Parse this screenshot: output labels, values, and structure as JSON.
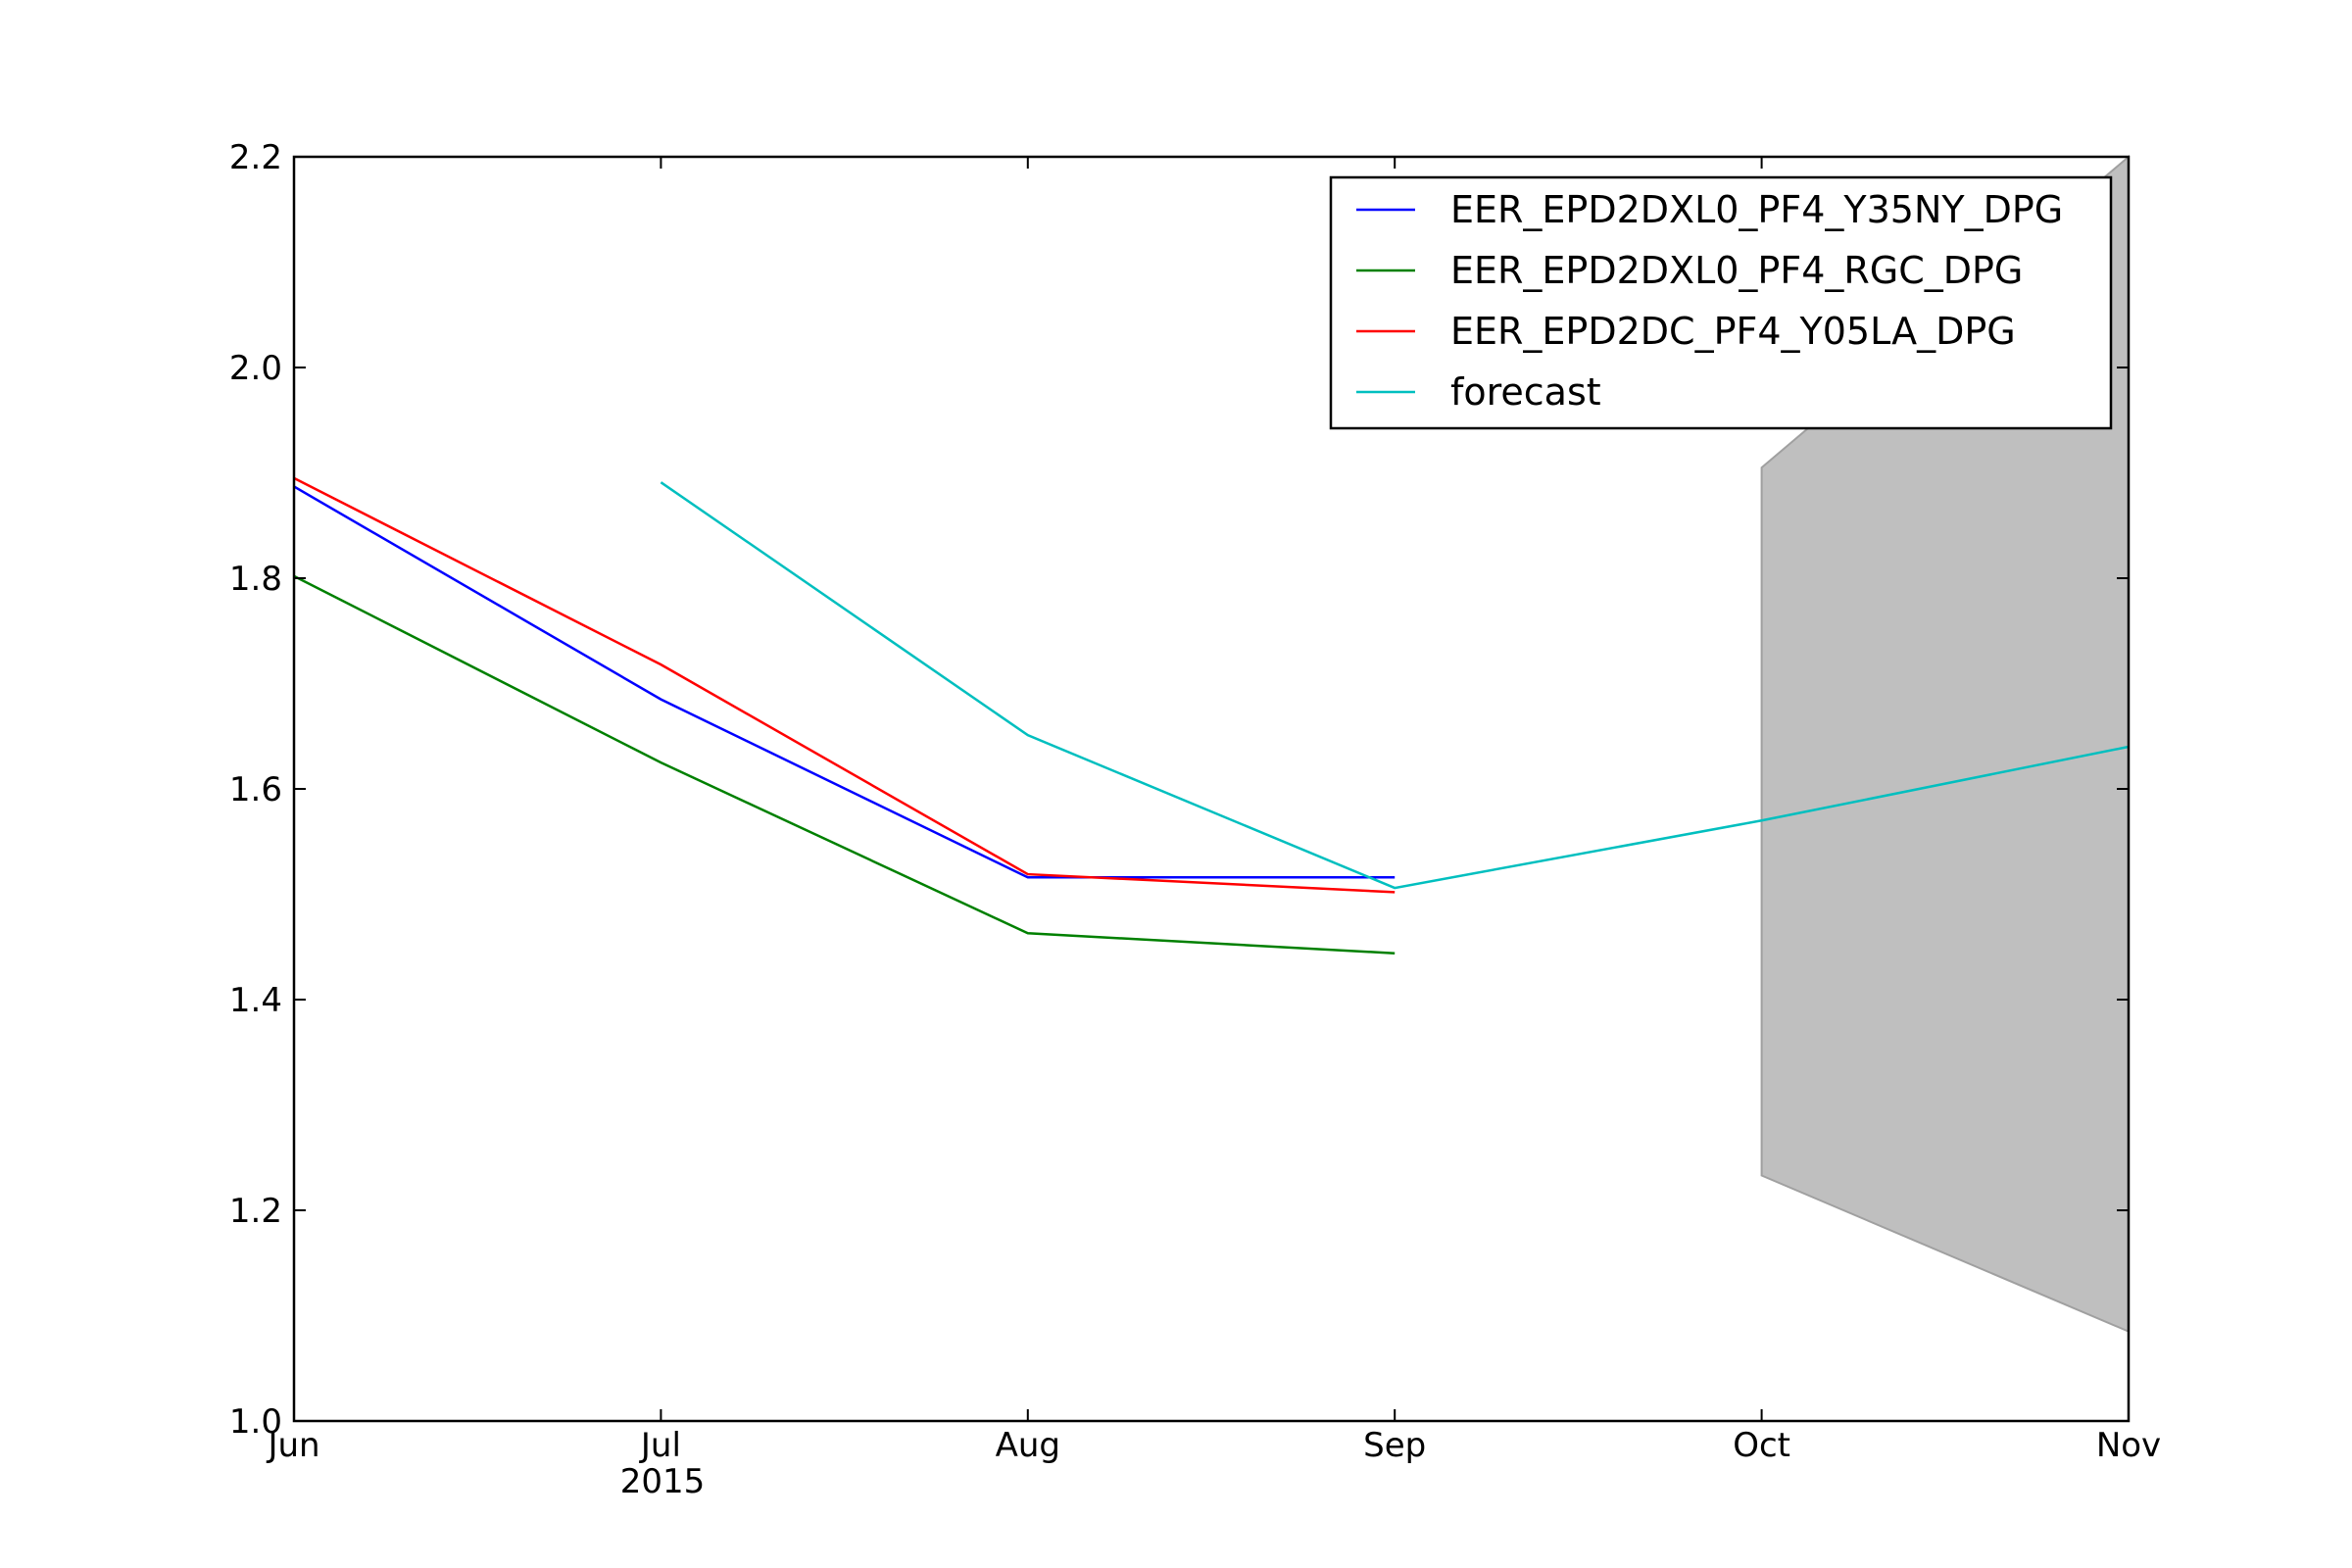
{
  "chart_data": {
    "type": "line",
    "x": [
      "2015-06",
      "2015-07",
      "2015-08",
      "2015-09",
      "2015-10",
      "2015-11"
    ],
    "x_tick_labels": [
      "Jun",
      "Jul",
      "Aug",
      "Sep",
      "Oct",
      "Nov"
    ],
    "x_secondary_label": "2015",
    "ylim": [
      1.0,
      2.2
    ],
    "y_ticks": [
      1.0,
      1.2,
      1.4,
      1.6,
      1.8,
      2.0,
      2.2
    ],
    "y_tick_labels": [
      "1.0",
      "1.2",
      "1.4",
      "1.6",
      "1.8",
      "2.0",
      "2.2"
    ],
    "grid": false,
    "legend_position": "top-right",
    "series": [
      {
        "name": "EER_EPD2DXL0_PF4_Y35NY_DPG",
        "color": "#0000ff",
        "x": [
          "2015-06",
          "2015-07",
          "2015-08",
          "2015-09"
        ],
        "values": [
          1.887,
          1.685,
          1.516,
          1.516
        ]
      },
      {
        "name": "EER_EPD2DXL0_PF4_RGC_DPG",
        "color": "#008000",
        "x": [
          "2015-06",
          "2015-07",
          "2015-08",
          "2015-09"
        ],
        "values": [
          1.802,
          1.625,
          1.463,
          1.444
        ]
      },
      {
        "name": "EER_EPD2DC_PF4_Y05LA_DPG",
        "color": "#ff0000",
        "x": [
          "2015-06",
          "2015-07",
          "2015-08",
          "2015-09"
        ],
        "values": [
          1.895,
          1.718,
          1.519,
          1.502
        ]
      },
      {
        "name": "forecast",
        "color": "#00bfbf",
        "x": [
          "2015-07",
          "2015-08",
          "2015-09",
          "2015-10",
          "2015-11"
        ],
        "values": [
          1.891,
          1.651,
          1.506,
          1.57,
          1.64
        ]
      }
    ],
    "confidence_band": {
      "color": "#bfbfbf",
      "x": [
        "2015-10",
        "2015-11"
      ],
      "lower": [
        1.233,
        1.085
      ],
      "upper": [
        1.905,
        2.2
      ]
    }
  }
}
